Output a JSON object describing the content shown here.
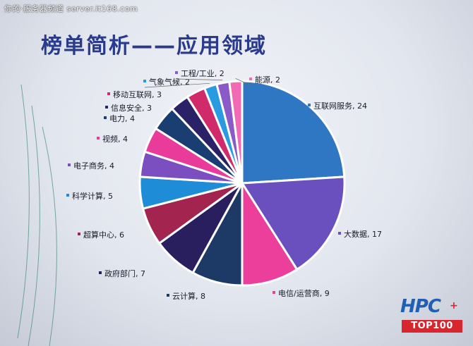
{
  "watermark": "你的·服务器频道 server.it168.com",
  "title": "榜单简析——应用领域",
  "logo": {
    "main": "HPC",
    "sub": "TOP100"
  },
  "chart_data": {
    "type": "pie",
    "title": "榜单简析——应用领域",
    "legend": "none",
    "slices": [
      {
        "label": "互联网服务",
        "value": 24,
        "color": "#2f77c2",
        "text": "互联网服务, 24"
      },
      {
        "label": "大数据",
        "value": 17,
        "color": "#6a4fbf",
        "text": "大数据, 17"
      },
      {
        "label": "电信/运营商",
        "value": 9,
        "color": "#ec3f9c",
        "text": "电信/运营商, 9"
      },
      {
        "label": "云计算",
        "value": 8,
        "color": "#1d3a66",
        "text": "云计算, 8"
      },
      {
        "label": "政府部门",
        "value": 7,
        "color": "#2a1f5e",
        "text": "政府部门, 7"
      },
      {
        "label": "超算中心",
        "value": 6,
        "color": "#a3244f",
        "text": "超算中心, 6"
      },
      {
        "label": "科学计算",
        "value": 5,
        "color": "#1e8cd6",
        "text": "科学计算, 5"
      },
      {
        "label": "电子商务",
        "value": 4,
        "color": "#7b4fc0",
        "text": "电子商务, 4"
      },
      {
        "label": "视频",
        "value": 4,
        "color": "#e93c9a",
        "text": "视频, 4"
      },
      {
        "label": "电力",
        "value": 4,
        "color": "#1a3e72",
        "text": "电力, 4"
      },
      {
        "label": "信息安全",
        "value": 3,
        "color": "#2b2166",
        "text": "信息安全, 3"
      },
      {
        "label": "移动互联网",
        "value": 3,
        "color": "#d12a6a",
        "text": "移动互联网, 3"
      },
      {
        "label": "气象气候",
        "value": 2,
        "color": "#2a9be0",
        "text": "气象气候, 2"
      },
      {
        "label": "工程/工业",
        "value": 2,
        "color": "#8a5bc8",
        "text": "工程/工业, 2"
      },
      {
        "label": "能源",
        "value": 2,
        "color": "#f06bb4",
        "text": "能源, 2"
      }
    ]
  }
}
